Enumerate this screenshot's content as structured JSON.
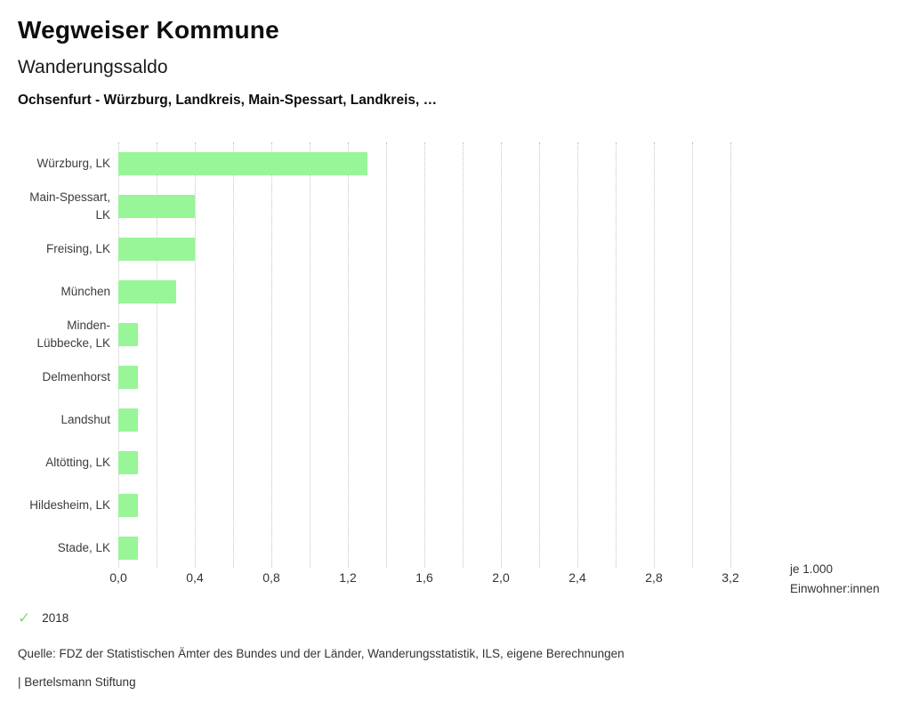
{
  "header": {
    "title": "Wegweiser Kommune",
    "subtitle": "Wanderungssaldo",
    "comparison": "Ochsenfurt - Würzburg, Landkreis, Main-Spessart, Landkreis, …"
  },
  "chart_data": {
    "type": "bar",
    "orientation": "horizontal",
    "title": "Wanderungssaldo",
    "categories": [
      "Würzburg, LK",
      "Main-Spessart,\nLK",
      "Freising, LK",
      "München",
      "Minden-\nLübbecke, LK",
      "Delmenhorst",
      "Landshut",
      "Altötting, LK",
      "Hildesheim, LK",
      "Stade, LK"
    ],
    "values": [
      1.3,
      0.4,
      0.4,
      0.3,
      0.1,
      0.1,
      0.1,
      0.1,
      0.1,
      0.1
    ],
    "year": "2018",
    "xlabel_lines": [
      "je 1.000",
      "Einwohner:innen"
    ],
    "xlim": [
      0,
      3.2
    ],
    "gridline_interval": 0.2,
    "xtick_interval": 0.4,
    "xtick_labels": [
      "0,0",
      "0,4",
      "0,8",
      "1,2",
      "1,6",
      "2,0",
      "2,4",
      "2,8",
      "3,2"
    ],
    "grid": true,
    "legend_position": "bottom-left"
  },
  "legend": {
    "year": "2018",
    "check_glyph": "✓"
  },
  "footer": {
    "source": "Quelle: FDZ der Statistischen Ämter des Bundes und der Länder, Wanderungsstatistik, ILS, eigene Berechnungen",
    "brand": "| Bertelsmann Stiftung"
  },
  "colors": {
    "bar": "#98f598",
    "grid": "#c3c3c3",
    "checkmark": "#7fdd7f",
    "text": "#3c3c3c"
  }
}
